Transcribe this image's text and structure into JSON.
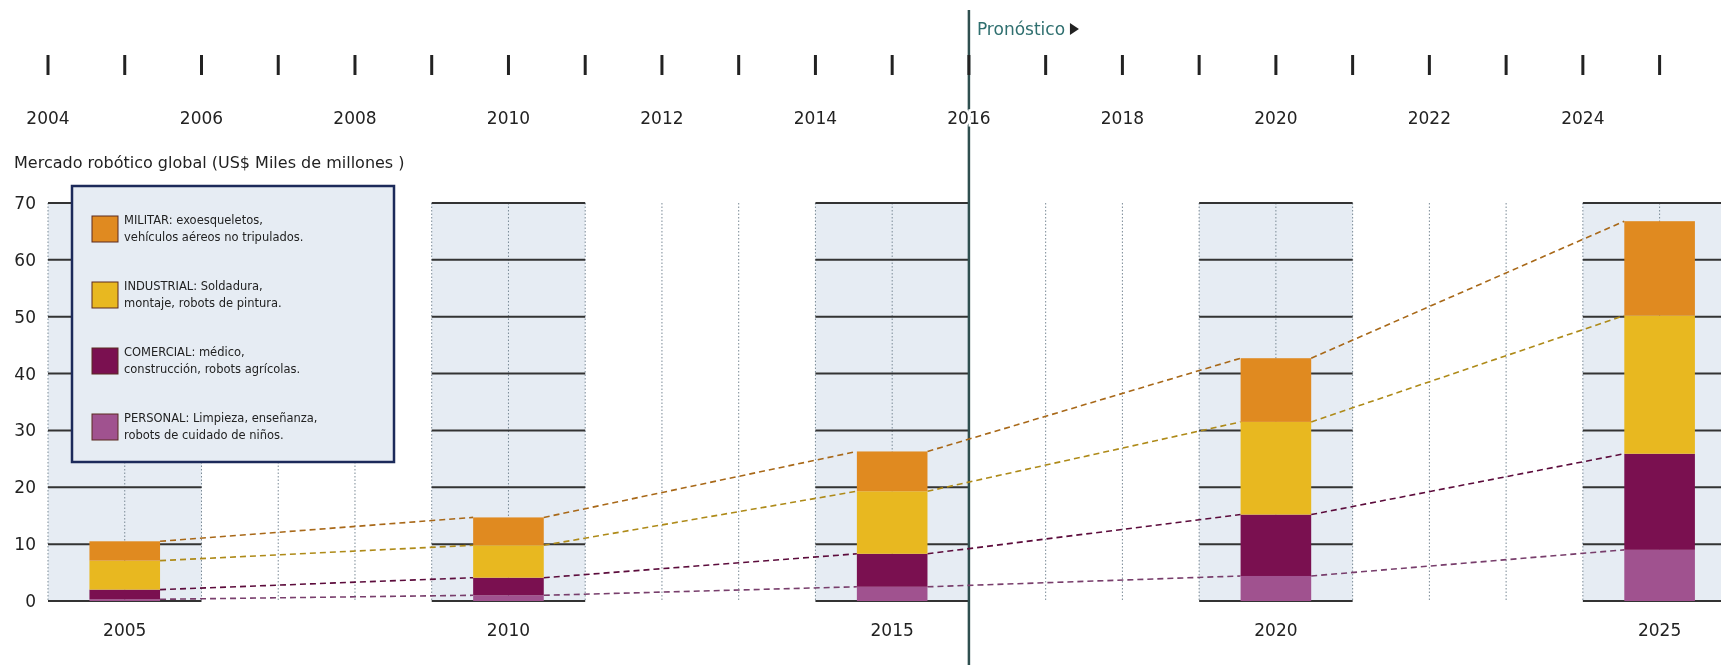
{
  "chart_data": {
    "type": "bar",
    "stacked": true,
    "ylabel": "Mercado robótico global (US$ Miles de millones )",
    "x": [
      2005,
      2010,
      2015,
      2020,
      2025
    ],
    "xlim": [
      2004,
      2025.8
    ],
    "xticks": [
      2005,
      2010,
      2015,
      2020,
      2025
    ],
    "x2lim": [
      2004,
      2025.8
    ],
    "x2ticks": [
      2004,
      {
        "value": 2005,
        "label": null
      },
      2006,
      {
        "value": 2007,
        "label": null
      },
      2008,
      {
        "value": 2009,
        "label": null
      },
      2010,
      {
        "value": 2011,
        "label": null
      },
      2012,
      {
        "value": 2013,
        "label": null
      },
      2014,
      {
        "value": 2015,
        "label": null
      },
      2016,
      {
        "value": 2017,
        "label": null
      },
      2018,
      {
        "value": 2019,
        "label": null
      },
      2020,
      {
        "value": 2021,
        "label": null
      },
      2022,
      {
        "value": 2023,
        "label": null
      },
      2024,
      {
        "value": 2025,
        "label": null
      }
    ],
    "ylim": [
      0,
      70
    ],
    "yticks": [
      0,
      10,
      20,
      30,
      40,
      50,
      60,
      70
    ],
    "grid": true,
    "legend": "top left",
    "ref_lines": [
      {
        "axis": "x",
        "value": 2016,
        "label": "Pronóstico",
        "color": "#2f4f4f"
      }
    ],
    "bands": [
      {
        "axis": "x",
        "from": 2004,
        "to": 2006,
        "color": "#e6ecf3"
      },
      {
        "axis": "x",
        "from": 2009,
        "to": 2011,
        "color": "#e6ecf3"
      },
      {
        "axis": "x",
        "from": 2014,
        "to": 2016,
        "color": "#e6ecf3"
      },
      {
        "axis": "x",
        "from": 2019,
        "to": 2021,
        "color": "#e6ecf3"
      },
      {
        "axis": "x",
        "from": 2024,
        "to": 2025.8,
        "color": "#e6ecf3"
      }
    ],
    "series": [
      {
        "name": "PERSONAL: Limpieza, enseñanza, robots de cuidado de niños.",
        "color": "#a0528f",
        "values": [
          0.3,
          1.0,
          2.5,
          4.4,
          9.0
        ]
      },
      {
        "name": "COMERCIAL: médico, construcción, robots agrícolas.",
        "color": "#7a1050",
        "values": [
          1.7,
          3.1,
          5.8,
          10.8,
          16.9
        ]
      },
      {
        "name": "INDUSTRIAL: Soldadura, montaje, robots de pintura.",
        "color": "#e8b820",
        "values": [
          5.1,
          5.7,
          11.0,
          16.3,
          24.3
        ]
      },
      {
        "name": "MILITAR: exoesqueletos, vehículos aéreos no tripulados.",
        "color": "#e08a20",
        "values": [
          3.4,
          4.9,
          7.0,
          11.2,
          16.6
        ]
      }
    ]
  }
}
